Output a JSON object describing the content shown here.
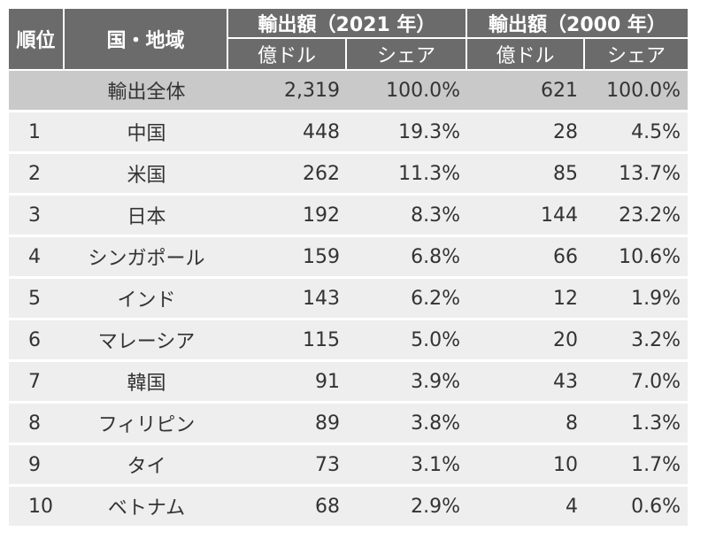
{
  "header": {
    "rank": "順位",
    "country": "国・地域",
    "exports_2021": "輸出額（2021 年）",
    "exports_2000": "輸出額（2000 年）",
    "unit": "億ドル",
    "share": "シェア"
  },
  "total": {
    "label": "輸出全体",
    "v2021": "2,319",
    "s2021": "100.0%",
    "v2000": "621",
    "s2000": "100.0%"
  },
  "rows": [
    {
      "rank": "1",
      "country": "中国",
      "v2021": "448",
      "s2021": "19.3%",
      "v2000": "28",
      "s2000": "4.5%"
    },
    {
      "rank": "2",
      "country": "米国",
      "v2021": "262",
      "s2021": "11.3%",
      "v2000": "85",
      "s2000": "13.7%"
    },
    {
      "rank": "3",
      "country": "日本",
      "v2021": "192",
      "s2021": "8.3%",
      "v2000": "144",
      "s2000": "23.2%"
    },
    {
      "rank": "4",
      "country": "シンガポール",
      "v2021": "159",
      "s2021": "6.8%",
      "v2000": "66",
      "s2000": "10.6%"
    },
    {
      "rank": "5",
      "country": "インド",
      "v2021": "143",
      "s2021": "6.2%",
      "v2000": "12",
      "s2000": "1.9%"
    },
    {
      "rank": "6",
      "country": "マレーシア",
      "v2021": "115",
      "s2021": "5.0%",
      "v2000": "20",
      "s2000": "3.2%"
    },
    {
      "rank": "7",
      "country": "韓国",
      "v2021": "91",
      "s2021": "3.9%",
      "v2000": "43",
      "s2000": "7.0%"
    },
    {
      "rank": "8",
      "country": "フィリピン",
      "v2021": "89",
      "s2021": "3.8%",
      "v2000": "8",
      "s2000": "1.3%"
    },
    {
      "rank": "9",
      "country": "タイ",
      "v2021": "73",
      "s2021": "3.1%",
      "v2000": "10",
      "s2000": "1.7%"
    },
    {
      "rank": "10",
      "country": "ベトナム",
      "v2021": "68",
      "s2021": "2.9%",
      "v2000": "4",
      "s2000": "0.6%"
    }
  ],
  "chart_data": {
    "type": "table",
    "columns": [
      "順位",
      "国・地域",
      "輸出額（2021 年）億ドル",
      "輸出額（2021 年）シェア",
      "輸出額（2000 年）億ドル",
      "輸出額（2000 年）シェア"
    ],
    "colors": {
      "header": "#6b6b6b",
      "total_row": "#c9c9c9",
      "row": "#eeeeee"
    }
  }
}
